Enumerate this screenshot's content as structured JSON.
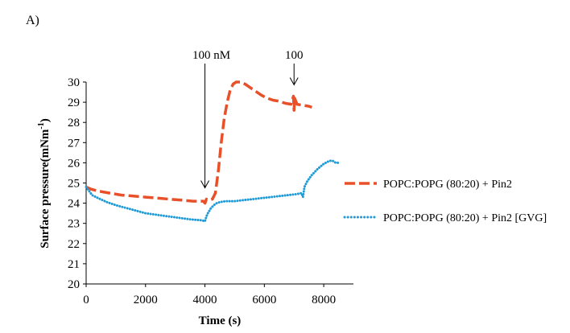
{
  "panel_label": "A)",
  "chart_data": {
    "type": "line",
    "title": "",
    "xlabel": "Time (s)",
    "ylabel_main": "Surface pressure(mNm",
    "ylabel_sup": "-1",
    "ylabel_end": ")",
    "xlim": [
      0,
      9000
    ],
    "ylim": [
      20,
      30
    ],
    "xticks": [
      0,
      2000,
      4000,
      6000,
      8000
    ],
    "yticks": [
      20,
      21,
      22,
      23,
      24,
      25,
      26,
      27,
      28,
      29,
      30
    ],
    "grid": false,
    "legend_position": "right",
    "annotations": [
      {
        "text": "100 nM",
        "x": 4000,
        "y": 24.2
      },
      {
        "text": "100",
        "x": 7000,
        "y": 29.3
      }
    ],
    "series": [
      {
        "name": "POPC:POPG (80:20) + Pin2",
        "color": "#e8502a",
        "style": "dash",
        "x": [
          0,
          150,
          400,
          800,
          1200,
          1600,
          2000,
          2400,
          2800,
          3200,
          3600,
          3950,
          4000,
          4050,
          4150,
          4250,
          4350,
          4450,
          4550,
          4650,
          4750,
          4850,
          4950,
          5050,
          5200,
          5350,
          5500,
          5700,
          5900,
          6100,
          6300,
          6500,
          6700,
          6900,
          6980,
          7000,
          7020,
          7100,
          7300,
          7500,
          7600
        ],
        "values": [
          24.8,
          24.7,
          24.6,
          24.5,
          24.4,
          24.35,
          24.3,
          24.25,
          24.2,
          24.15,
          24.1,
          24.1,
          24.0,
          24.2,
          24.15,
          24.2,
          24.5,
          25.6,
          27.0,
          28.2,
          29.0,
          29.6,
          29.9,
          30.0,
          30.0,
          29.9,
          29.75,
          29.55,
          29.35,
          29.2,
          29.1,
          29.05,
          28.95,
          28.9,
          29.3,
          28.6,
          29.2,
          28.9,
          28.85,
          28.8,
          28.75
        ]
      },
      {
        "name": "POPC:POPG (80:20) + Pin2 [GVG]",
        "color": "#1f9bd7",
        "style": "dot",
        "x": [
          0,
          100,
          200,
          400,
          700,
          1000,
          1500,
          2000,
          2500,
          3000,
          3500,
          3900,
          4000,
          4050,
          4100,
          4200,
          4300,
          4400,
          4500,
          4700,
          5000,
          5300,
          5600,
          5900,
          6200,
          6500,
          6800,
          7100,
          7250,
          7300,
          7350,
          7450,
          7600,
          7800,
          8000,
          8200,
          8300,
          8400,
          8500
        ],
        "values": [
          24.8,
          24.6,
          24.4,
          24.25,
          24.05,
          23.9,
          23.7,
          23.5,
          23.4,
          23.3,
          23.2,
          23.15,
          23.1,
          23.35,
          23.5,
          23.75,
          23.9,
          24.0,
          24.05,
          24.1,
          24.1,
          24.15,
          24.2,
          24.25,
          24.3,
          24.35,
          24.4,
          24.45,
          24.5,
          24.3,
          24.8,
          25.1,
          25.4,
          25.7,
          25.95,
          26.1,
          26.1,
          26.0,
          26.0
        ]
      }
    ]
  }
}
